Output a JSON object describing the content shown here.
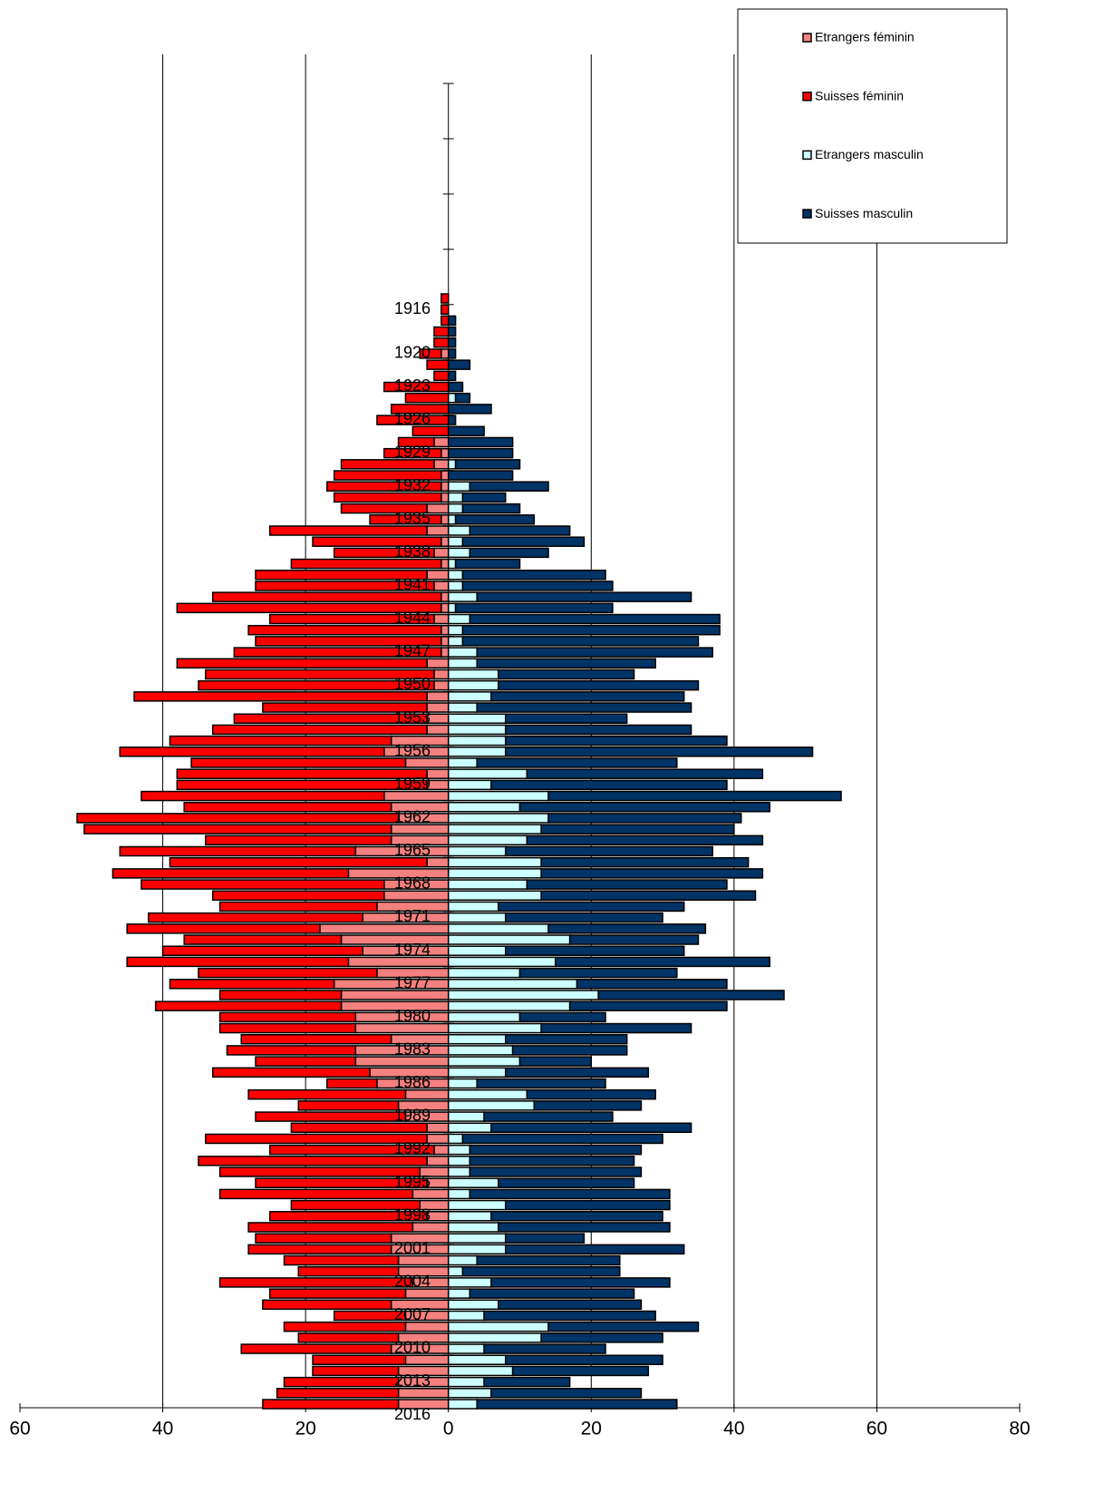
{
  "chart_data": {
    "type": "pyramid",
    "orientation": "horizontal",
    "stacked": true,
    "categories": [
      "1916",
      null,
      null,
      null,
      "1920",
      null,
      null,
      "1923",
      null,
      null,
      "1926",
      null,
      null,
      "1929",
      null,
      null,
      "1932",
      null,
      null,
      "1935",
      null,
      null,
      "1938",
      null,
      null,
      "1941",
      null,
      null,
      "1944",
      null,
      null,
      "1947",
      null,
      null,
      "1950",
      null,
      null,
      "1953",
      null,
      null,
      "1956",
      null,
      null,
      "1959",
      null,
      null,
      "1962",
      null,
      null,
      "1965",
      null,
      null,
      "1968",
      null,
      null,
      "1971",
      null,
      null,
      "1974",
      null,
      null,
      "1977",
      null,
      null,
      "1980",
      null,
      null,
      "1983",
      null,
      null,
      "1986",
      null,
      null,
      "1989",
      null,
      null,
      "1992",
      null,
      null,
      "1995",
      null,
      null,
      "1998",
      null,
      null,
      "2001",
      null,
      null,
      "2004",
      null,
      null,
      "2007",
      null,
      null,
      "2010",
      null,
      null,
      "2013",
      null,
      null,
      "2016"
    ],
    "series": [
      {
        "name": "Etrangers féminin",
        "color": "#f4817f",
        "values": [
          0,
          0,
          0,
          0,
          0,
          -1,
          0,
          0,
          0,
          0,
          0,
          0,
          0,
          -2,
          -1,
          -2,
          -1,
          -1,
          -1,
          -3,
          -1,
          -3,
          -1,
          -2,
          -1,
          -3,
          -2,
          -1,
          -1,
          -2,
          -1,
          -1,
          -1,
          -3,
          -2,
          -2,
          -3,
          -3,
          -3,
          -3,
          -8,
          -9,
          -6,
          -3,
          -3,
          -9,
          -8,
          -7,
          -8,
          -8,
          -13,
          -3,
          -14,
          -9,
          -9,
          -10,
          -12,
          -18,
          -15,
          -12,
          -14,
          -10,
          -16,
          -15,
          -15,
          -13,
          -13,
          -8,
          -13,
          -13,
          -11,
          -10,
          -6,
          -7,
          -6,
          -3,
          -3,
          -2,
          -3,
          -4,
          -3,
          -5,
          -4,
          -3,
          -5,
          -8,
          -8,
          -7,
          -7,
          -5,
          -6,
          -8,
          -6,
          -6,
          -7,
          -8,
          -6,
          -7,
          -7,
          -7,
          -7
        ]
      },
      {
        "name": "Suisses féminin",
        "color": "#ff0000",
        "values": [
          -1,
          -1,
          -1,
          -2,
          -2,
          -3,
          -3,
          -2,
          -9,
          -6,
          -8,
          -10,
          -5,
          -5,
          -8,
          -13,
          -15,
          -16,
          -15,
          -12,
          -10,
          -22,
          -18,
          -14,
          -21,
          -24,
          -25,
          -32,
          -37,
          -23,
          -27,
          -26,
          -29,
          -35,
          -32,
          -33,
          -41,
          -23,
          -27,
          -30,
          -31,
          -37,
          -30,
          -35,
          -35,
          -34,
          -29,
          -45,
          -43,
          -26,
          -33,
          -36,
          -33,
          -34,
          -24,
          -22,
          -30,
          -27,
          -22,
          -28,
          -31,
          -25,
          -23,
          -17,
          -26,
          -19,
          -19,
          -21,
          -18,
          -14,
          -22,
          -7,
          -22,
          -14,
          -21,
          -19,
          -31,
          -23,
          -32,
          -28,
          -24,
          -27,
          -18,
          -22,
          -23,
          -19,
          -20,
          -16,
          -14,
          -27,
          -19,
          -18,
          -10,
          -17,
          -14,
          -21,
          -13,
          -12,
          -16,
          -17,
          -19
        ]
      },
      {
        "name": "Etrangers masculin",
        "color": "#ccffff",
        "values": [
          0,
          0,
          0,
          0,
          0,
          0,
          0,
          0,
          0,
          1,
          0,
          0,
          0,
          0,
          0,
          1,
          0,
          3,
          2,
          2,
          1,
          3,
          2,
          3,
          1,
          2,
          2,
          4,
          1,
          3,
          2,
          2,
          4,
          4,
          7,
          7,
          6,
          4,
          8,
          8,
          8,
          8,
          4,
          11,
          6,
          14,
          10,
          14,
          13,
          11,
          8,
          13,
          13,
          11,
          13,
          7,
          8,
          14,
          17,
          8,
          15,
          10,
          18,
          21,
          17,
          10,
          13,
          8,
          9,
          10,
          8,
          4,
          11,
          12,
          5,
          6,
          2,
          3,
          3,
          3,
          7,
          3,
          8,
          6,
          7,
          8,
          8,
          4,
          2,
          6,
          3,
          7,
          5,
          14,
          13,
          5,
          8,
          9,
          5,
          6,
          4
        ]
      },
      {
        "name": "Suisses masculin",
        "color": "#003366",
        "values": [
          0,
          0,
          1,
          1,
          1,
          1,
          3,
          1,
          2,
          2,
          6,
          1,
          5,
          9,
          9,
          9,
          9,
          11,
          6,
          8,
          11,
          14,
          17,
          11,
          9,
          20,
          21,
          30,
          22,
          35,
          36,
          33,
          33,
          25,
          19,
          28,
          27,
          30,
          17,
          26,
          31,
          43,
          28,
          33,
          33,
          41,
          35,
          27,
          27,
          33,
          29,
          29,
          31,
          28,
          30,
          26,
          22,
          22,
          18,
          25,
          30,
          22,
          21,
          26,
          22,
          12,
          21,
          17,
          16,
          10,
          20,
          18,
          18,
          15,
          18,
          28,
          28,
          24,
          23,
          24,
          19,
          28,
          23,
          24,
          24,
          11,
          25,
          20,
          22,
          25,
          23,
          20,
          24,
          21,
          17,
          17,
          22,
          19,
          12,
          21,
          28
        ]
      }
    ],
    "xlim": [
      -60,
      80
    ],
    "xticks": [
      {
        "value": -60,
        "label": "60"
      },
      {
        "value": -40,
        "label": "40"
      },
      {
        "value": -20,
        "label": "20"
      },
      0,
      20,
      40,
      60,
      80
    ],
    "grid": true,
    "legend": "top-right"
  }
}
